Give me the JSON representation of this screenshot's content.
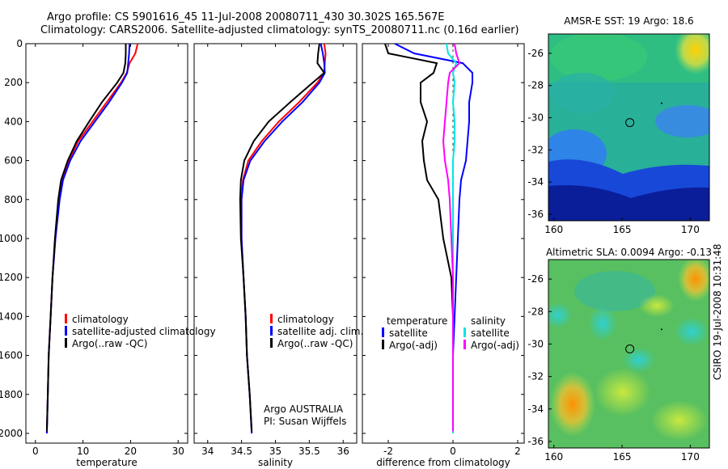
{
  "title": {
    "line1": "Argo profile: CS 5901616_45 11-Jul-2008 20080711_430 30.302S 165.567E",
    "line2": "Climatology: CARS2006. Satellite-adjusted climatology: synTS_20080711.nc (0.16d earlier)"
  },
  "colors": {
    "red": "#ff0000",
    "blue": "#0000ff",
    "black": "#000000",
    "cyan": "#00e5e5",
    "magenta": "#ff00ff"
  },
  "chart_data": [
    {
      "type": "line",
      "xlabel": "temperature",
      "xlim": [
        -2,
        32
      ],
      "ylim": [
        0,
        2050
      ],
      "xticks": [
        "0",
        "10",
        "20",
        "30"
      ],
      "yticks": [
        "0",
        "200",
        "400",
        "600",
        "800",
        "1000",
        "1200",
        "1400",
        "1600",
        "1800",
        "2000"
      ],
      "legend": [
        "climatology",
        "satellite-adjusted climatology",
        "Argo(..raw -QC)"
      ],
      "legend_position": "bottom-right",
      "series": [
        {
          "name": "climatology",
          "color": "red",
          "x": [
            21.5,
            21.0,
            19.8,
            19.2,
            18.0,
            15.0,
            12.0,
            9.0,
            7.0,
            5.6,
            5.0,
            4.2,
            3.6,
            3.2,
            2.8,
            2.6,
            2.4
          ],
          "y": [
            0,
            50,
            100,
            150,
            200,
            300,
            400,
            500,
            600,
            700,
            800,
            1000,
            1200,
            1400,
            1600,
            1800,
            2000
          ]
        },
        {
          "name": "satellite-adjusted climatology",
          "color": "blue",
          "x": [
            19.8,
            19.7,
            19.5,
            19.3,
            18.2,
            15.5,
            12.5,
            9.5,
            7.3,
            5.8,
            5.1,
            4.2,
            3.6,
            3.2,
            2.8,
            2.6,
            2.4
          ],
          "y": [
            0,
            50,
            100,
            150,
            200,
            300,
            400,
            500,
            600,
            700,
            800,
            1000,
            1200,
            1400,
            1600,
            1800,
            2000
          ]
        },
        {
          "name": "Argo(..raw -QC)",
          "color": "black",
          "x": [
            19.0,
            19.0,
            18.9,
            18.5,
            17.2,
            14.0,
            11.3,
            8.7,
            6.8,
            5.4,
            4.8,
            4.1,
            3.6,
            3.2,
            2.8,
            2.6,
            2.4
          ],
          "y": [
            0,
            50,
            100,
            150,
            200,
            300,
            400,
            500,
            600,
            700,
            800,
            1000,
            1200,
            1400,
            1600,
            1800,
            1990
          ]
        }
      ]
    },
    {
      "type": "line",
      "xlabel": "salinity",
      "xlim": [
        33.8,
        36.2
      ],
      "ylim": [
        0,
        2050
      ],
      "xticks": [
        "34",
        "34.5",
        "35",
        "35.5",
        "36"
      ],
      "legend": [
        "climatology",
        "satellite adj. clim.",
        "Argo(..raw -QC)"
      ],
      "legend_position": "bottom-right",
      "annotation": [
        "Argo AUSTRALIA",
        "PI: Susan Wijffels"
      ],
      "series": [
        {
          "name": "climatology",
          "color": "red",
          "x": [
            35.72,
            35.74,
            35.73,
            35.72,
            35.62,
            35.35,
            35.05,
            34.8,
            34.6,
            34.52,
            34.5,
            34.5,
            34.53,
            34.56,
            34.58,
            34.62,
            34.65
          ],
          "y": [
            0,
            50,
            100,
            150,
            200,
            300,
            400,
            500,
            600,
            700,
            800,
            1000,
            1200,
            1400,
            1600,
            1800,
            2000
          ]
        },
        {
          "name": "satellite adj. clim.",
          "color": "blue",
          "x": [
            35.67,
            35.7,
            35.72,
            35.73,
            35.65,
            35.4,
            35.1,
            34.84,
            34.63,
            34.53,
            34.5,
            34.5,
            34.53,
            34.56,
            34.58,
            34.62,
            34.65
          ],
          "y": [
            0,
            50,
            100,
            150,
            200,
            300,
            400,
            500,
            600,
            700,
            800,
            1000,
            1200,
            1400,
            1600,
            1800,
            2000
          ]
        },
        {
          "name": "Argo(..raw -QC)",
          "color": "black",
          "x": [
            35.65,
            35.63,
            35.62,
            35.72,
            35.55,
            35.22,
            34.9,
            34.68,
            34.54,
            34.49,
            34.48,
            34.49,
            34.53,
            34.56,
            34.58,
            34.62,
            34.65
          ],
          "y": [
            0,
            50,
            100,
            150,
            200,
            300,
            400,
            500,
            600,
            700,
            800,
            1000,
            1200,
            1400,
            1600,
            1800,
            1990
          ]
        }
      ]
    },
    {
      "type": "line",
      "xlabel": "difference from climatology",
      "xlim": [
        -2.8,
        2.2
      ],
      "ylim": [
        0,
        2050
      ],
      "xticks": [
        "-2",
        "0",
        "2"
      ],
      "legend": [
        "temperature",
        "satellite",
        "Argo(-adj)",
        "salinity",
        "satellite",
        "Argo(-adj)"
      ],
      "legend_position": "bottom",
      "series": [
        {
          "name": "temperature satellite",
          "color": "blue",
          "x": [
            -1.8,
            -1.2,
            0.3,
            0.6,
            0.6,
            0.5,
            0.5,
            0.45,
            0.4,
            0.25,
            0.2,
            0.15,
            0.1,
            0.05,
            0,
            0,
            0
          ],
          "y": [
            0,
            50,
            100,
            150,
            200,
            300,
            400,
            500,
            600,
            700,
            800,
            1000,
            1200,
            1400,
            1600,
            1800,
            2000
          ]
        },
        {
          "name": "temperature Argo(-adj)",
          "color": "black",
          "x": [
            -2.1,
            -2.0,
            -0.5,
            -0.6,
            -1.0,
            -1.0,
            -0.8,
            -0.95,
            -0.9,
            -0.8,
            -0.45,
            -0.3,
            -0.05,
            0,
            0,
            0,
            0
          ],
          "y": [
            0,
            50,
            100,
            150,
            200,
            300,
            400,
            500,
            600,
            700,
            800,
            1000,
            1200,
            1400,
            1600,
            1800,
            1990
          ]
        },
        {
          "name": "salinity satellite",
          "color": "cyan",
          "x": [
            -0.2,
            -0.15,
            0.1,
            0.0,
            0.05,
            0.0,
            0.05,
            0.05,
            0.0,
            0.0,
            0.0,
            0.0,
            0.0,
            0.0,
            0.0,
            0.0,
            0.0
          ],
          "y": [
            0,
            50,
            100,
            150,
            200,
            300,
            400,
            500,
            600,
            700,
            800,
            1000,
            1200,
            1400,
            1600,
            1800,
            2000
          ]
        },
        {
          "name": "salinity Argo(-adj)",
          "color": "magenta",
          "x": [
            0.05,
            0.1,
            0.2,
            -0.1,
            -0.15,
            -0.2,
            -0.25,
            -0.3,
            -0.25,
            -0.15,
            -0.1,
            -0.05,
            0.0,
            0.0,
            0.0,
            0.0,
            0.0
          ],
          "y": [
            0,
            50,
            100,
            150,
            200,
            300,
            400,
            500,
            600,
            700,
            800,
            1000,
            1200,
            1400,
            1600,
            1800,
            1990
          ]
        }
      ]
    },
    {
      "type": "heatmap",
      "title": "AMSR-E SST: 19 Argo: 18.6",
      "xlim": [
        159.6,
        171.4
      ],
      "ylim": [
        -36.4,
        -24.8
      ],
      "xticks": [
        "160",
        "165",
        "170"
      ],
      "yticks": [
        "-26",
        "-28",
        "-30",
        "-32",
        "-34",
        "-36"
      ],
      "marker": {
        "lon": 165.567,
        "lat": -30.302
      }
    },
    {
      "type": "heatmap",
      "title": "Altimetric SLA: 0.0094 Argo: -0.13",
      "xlim": [
        159.6,
        171.4
      ],
      "ylim": [
        -36.4,
        -24.8
      ],
      "xticks": [
        "160",
        "165",
        "170"
      ],
      "yticks": [
        "-26",
        "-28",
        "-30",
        "-32",
        "-34",
        "-36"
      ],
      "marker": {
        "lon": 165.567,
        "lat": -30.302
      }
    }
  ],
  "side_label": "CSIRO 19-Jul-2008 10:31:48"
}
